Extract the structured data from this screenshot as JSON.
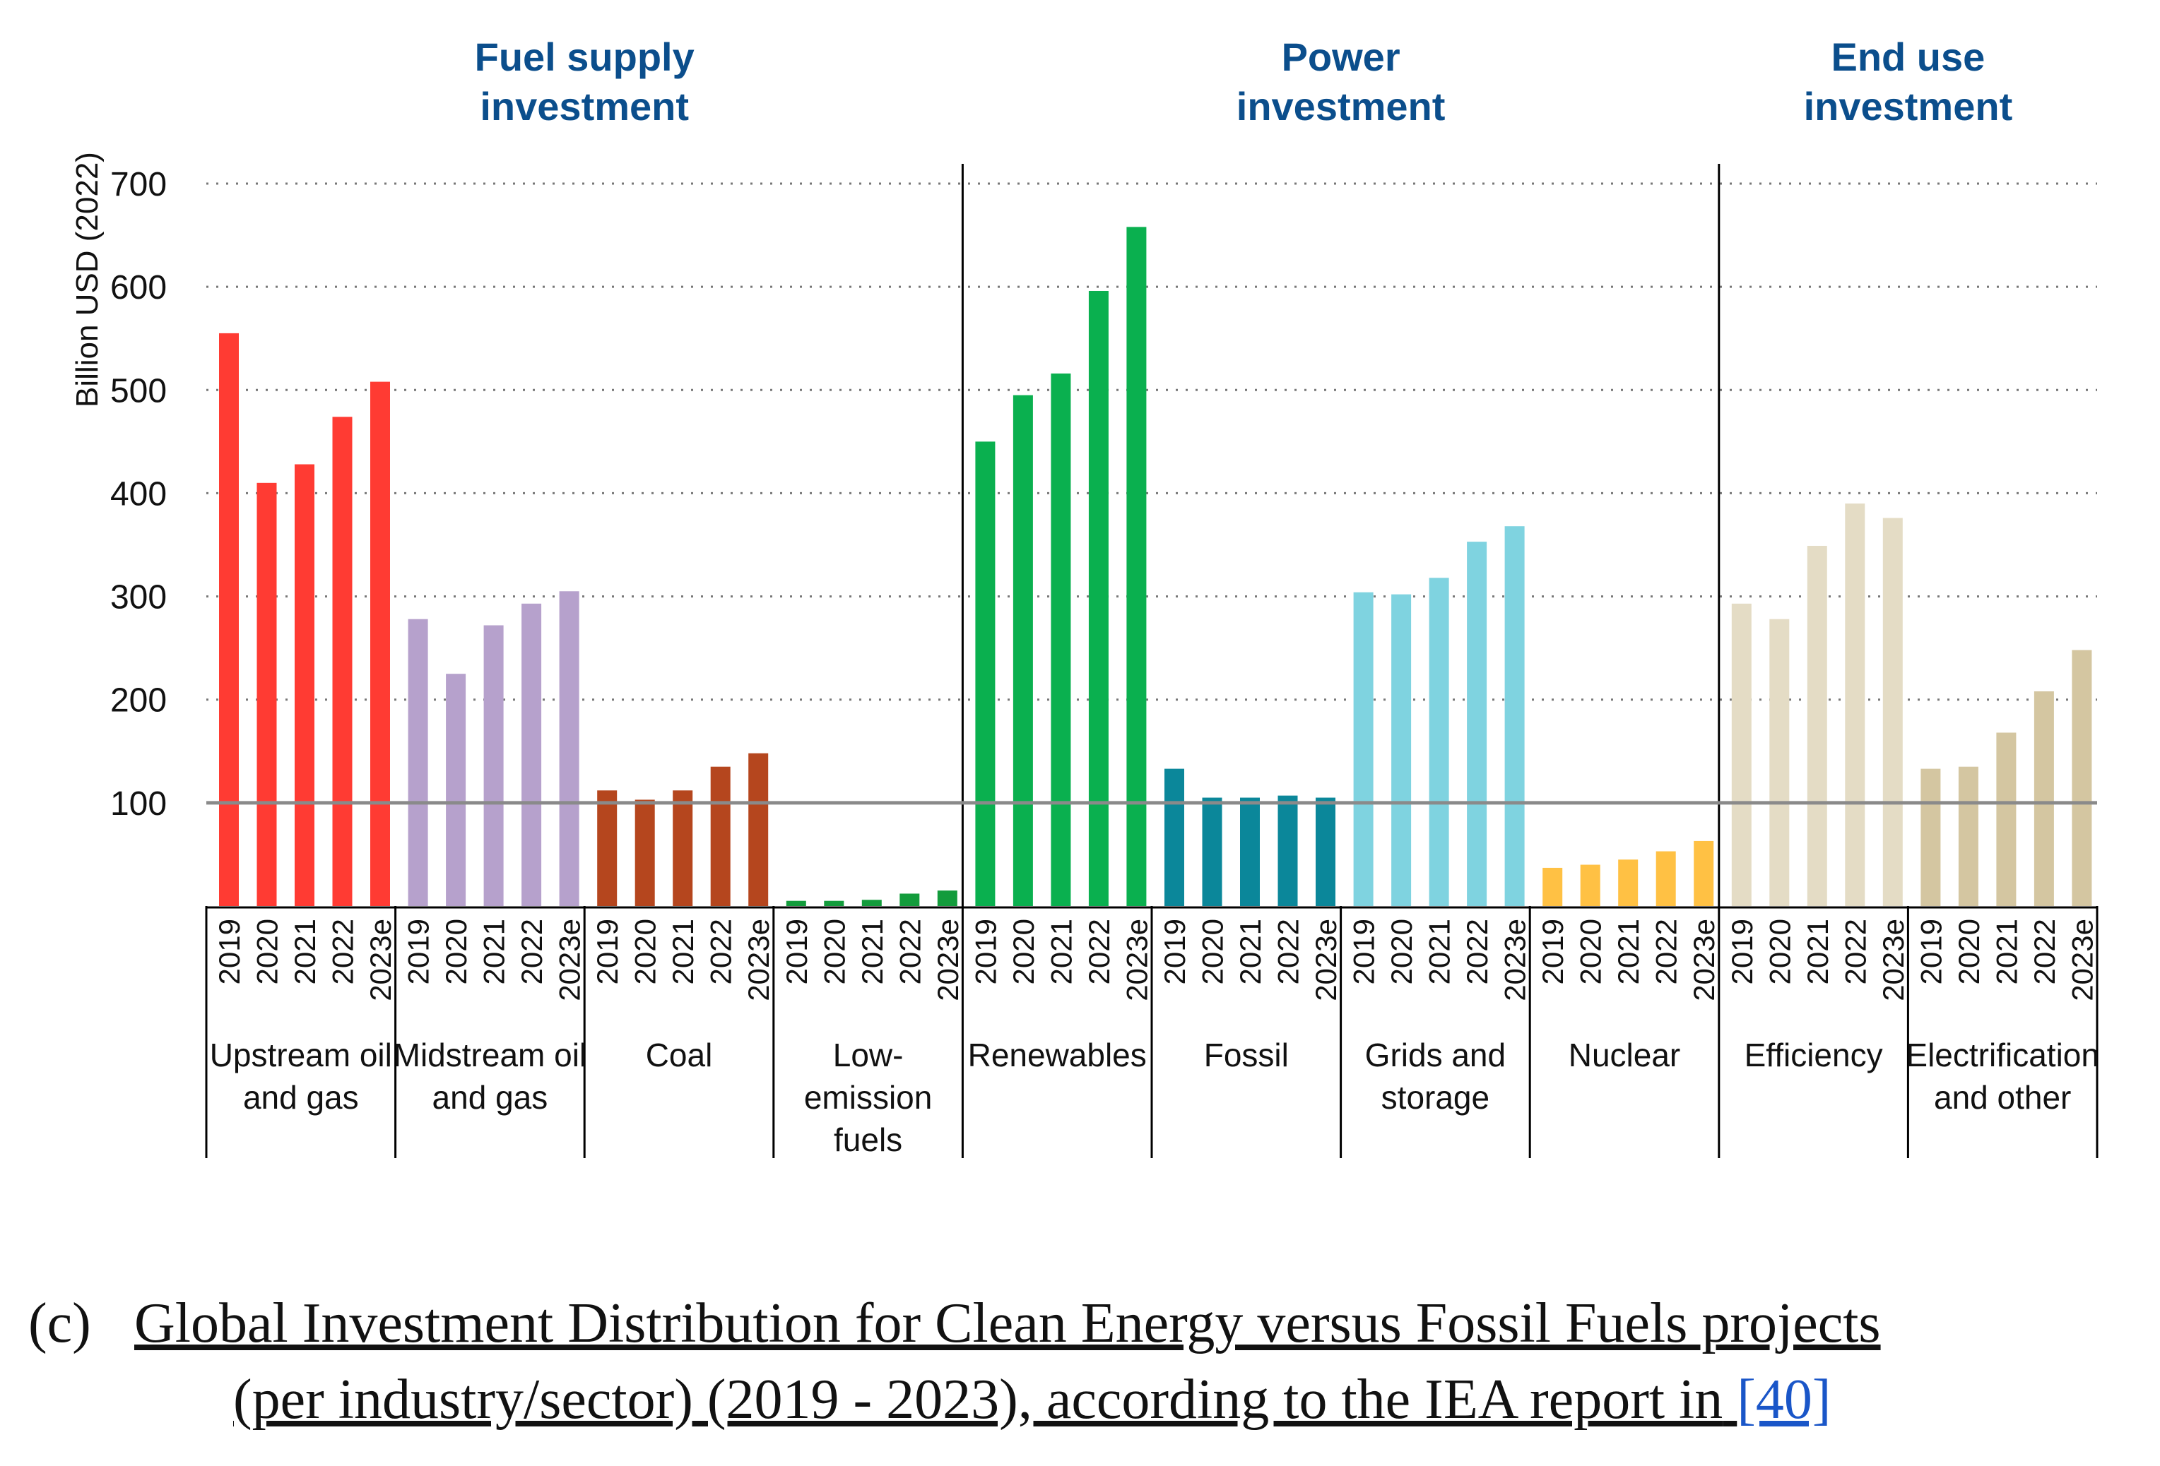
{
  "chart_data": {
    "type": "bar",
    "ylabel": "Billion USD (2022)",
    "ylim": [
      0,
      700
    ],
    "yticks": [
      100,
      200,
      300,
      400,
      500,
      600,
      700
    ],
    "grid": "dotted horizontal",
    "reference_line": 100,
    "years": [
      "2019",
      "2020",
      "2021",
      "2022",
      "2023e"
    ],
    "sections": [
      {
        "title_lines": [
          "Fuel supply",
          "investment"
        ],
        "color": "#0b4e8c"
      },
      {
        "title_lines": [
          "Power",
          "investment"
        ],
        "color": "#0b4e8c"
      },
      {
        "title_lines": [
          "End use",
          "investment"
        ],
        "color": "#0b4e8c"
      }
    ],
    "groups": [
      {
        "name_lines": [
          "Upstream oil",
          "and gas"
        ],
        "section": 0,
        "color": "#ff3b33",
        "values": [
          555,
          410,
          428,
          474,
          508
        ]
      },
      {
        "name_lines": [
          "Midstream oil",
          "and gas"
        ],
        "section": 0,
        "color": "#b6a1cc",
        "values": [
          278,
          225,
          272,
          293,
          305
        ]
      },
      {
        "name_lines": [
          "Coal"
        ],
        "section": 0,
        "color": "#b5461e",
        "values": [
          112,
          103,
          112,
          135,
          148
        ]
      },
      {
        "name_lines": [
          "Low-",
          "emission",
          "fuels"
        ],
        "section": 0,
        "color": "#139c3c",
        "values": [
          5,
          5,
          6,
          12,
          15
        ]
      },
      {
        "name_lines": [
          "Renewables"
        ],
        "section": 1,
        "color": "#0ab04f",
        "values": [
          450,
          495,
          516,
          596,
          658
        ]
      },
      {
        "name_lines": [
          "Fossil"
        ],
        "section": 1,
        "color": "#0b879a",
        "values": [
          133,
          105,
          105,
          107,
          105
        ]
      },
      {
        "name_lines": [
          "Grids and",
          "storage"
        ],
        "section": 1,
        "color": "#7fd3e0",
        "values": [
          304,
          302,
          318,
          353,
          368
        ]
      },
      {
        "name_lines": [
          "Nuclear"
        ],
        "section": 1,
        "color": "#ffc144",
        "values": [
          37,
          40,
          45,
          53,
          63
        ]
      },
      {
        "name_lines": [
          "Efficiency"
        ],
        "section": 2,
        "color": "#e4dcc5",
        "values": [
          293,
          278,
          349,
          390,
          376
        ]
      },
      {
        "name_lines": [
          "Electrification",
          "and other"
        ],
        "section": 2,
        "color": "#d4c6a1",
        "values": [
          133,
          135,
          168,
          208,
          248
        ]
      }
    ]
  },
  "caption": {
    "label": "(c)",
    "line1": "Global Investment Distribution for Clean Energy versus Fossil Fuels projects",
    "line2": "(per industry/sector) (2019 - 2023), according to the IEA report in",
    "ref": "[40]"
  }
}
